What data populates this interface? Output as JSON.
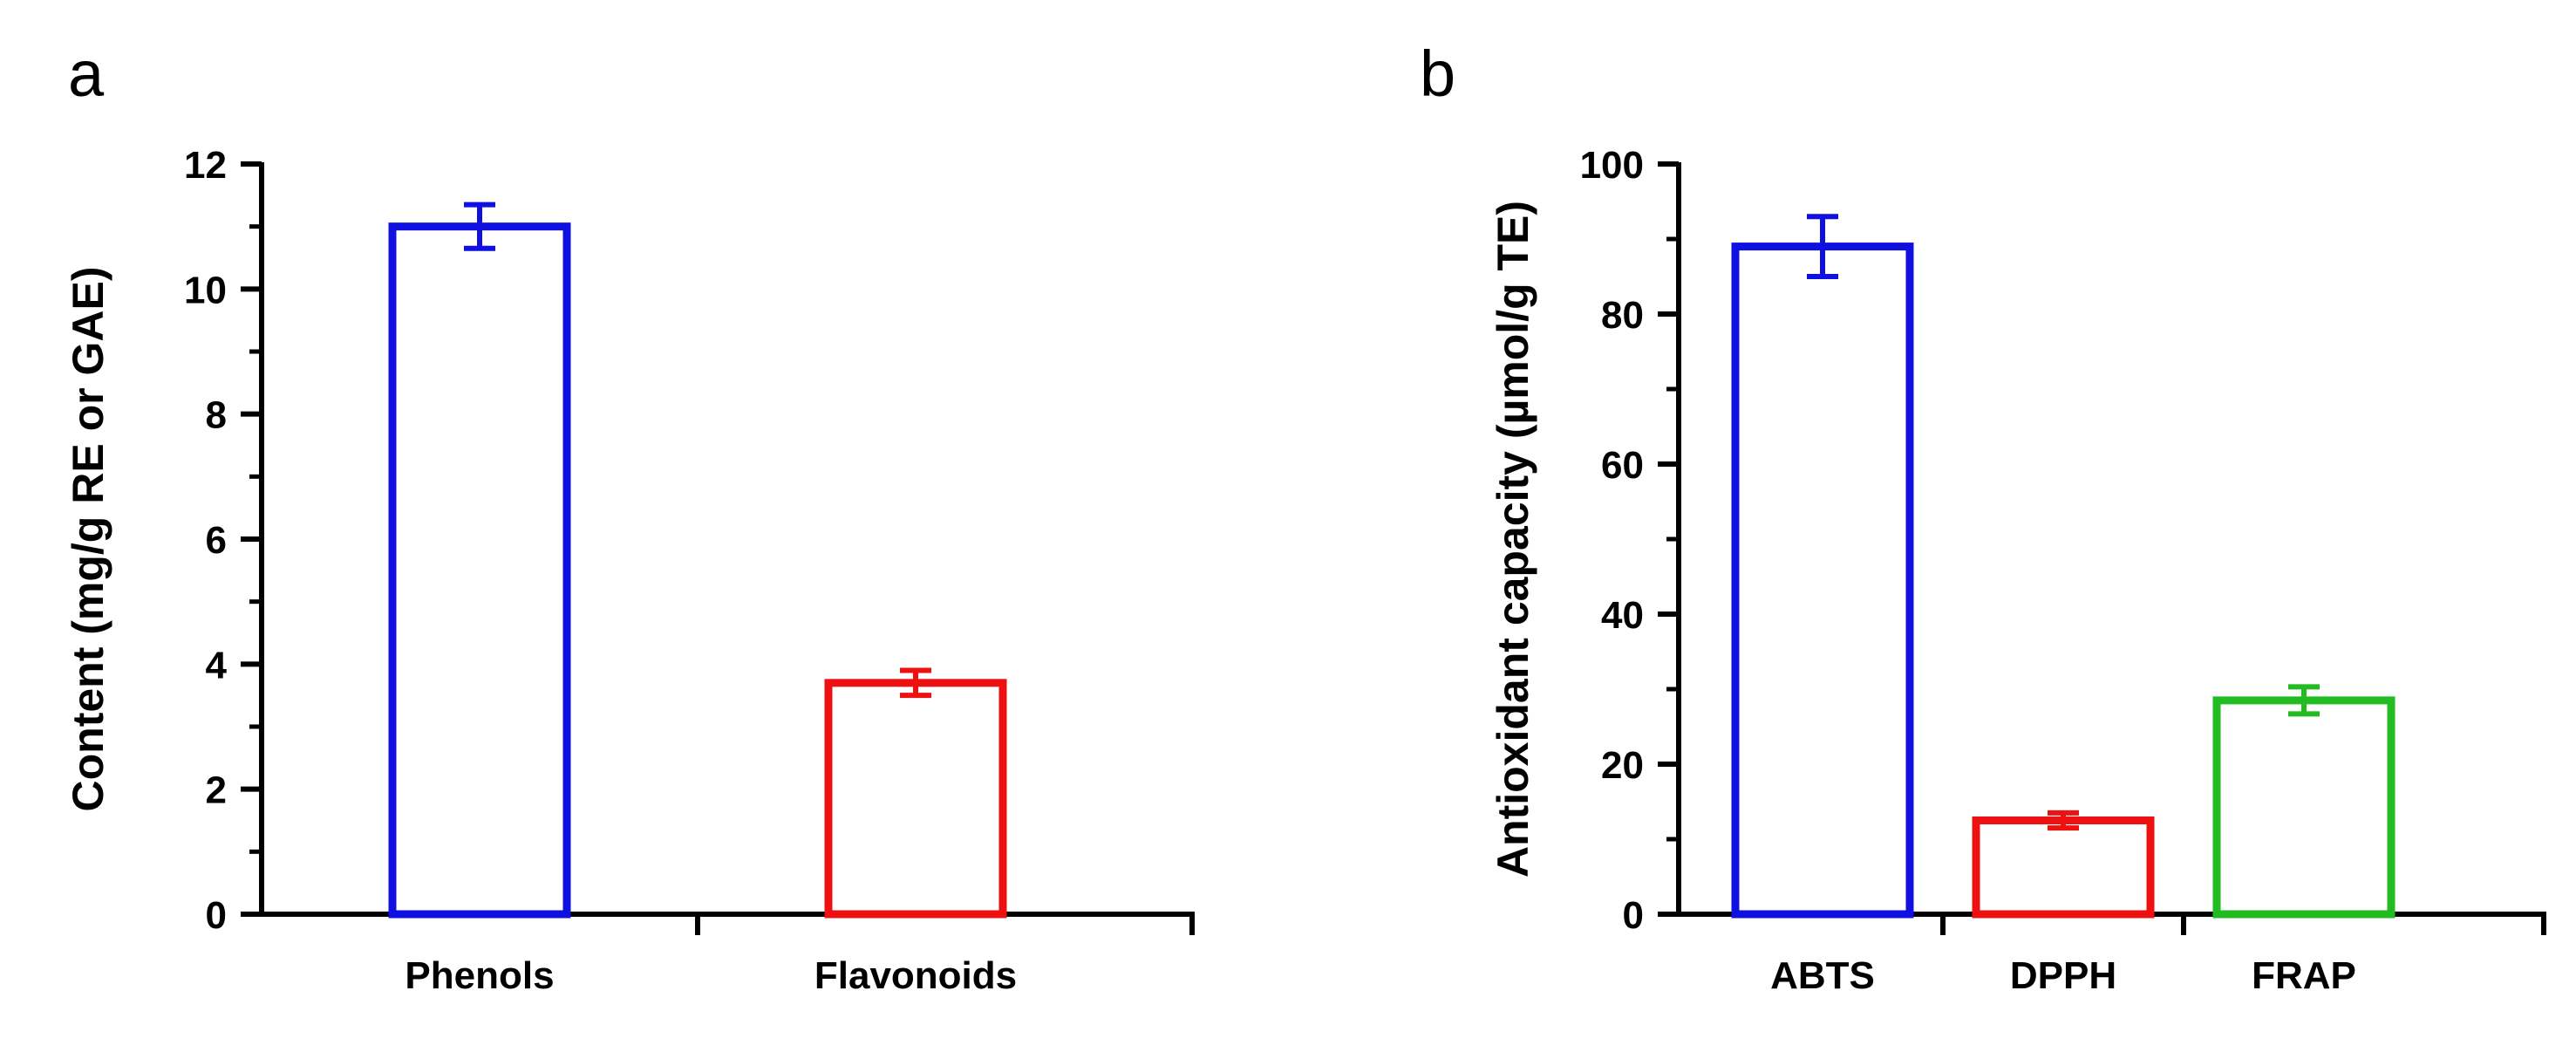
{
  "chart_data": [
    {
      "type": "bar",
      "panel": "a",
      "title": "",
      "xlabel": "",
      "ylabel": "Content (mg/g RE or GAE)",
      "categories": [
        "Phenols",
        "Flavonoids"
      ],
      "values": [
        11.0,
        3.7
      ],
      "errors": [
        0.35,
        0.2
      ],
      "colors": [
        "#1010e0",
        "#ee1111"
      ],
      "ylim": [
        0,
        12
      ],
      "yticks": [
        0,
        2,
        4,
        6,
        8,
        10,
        12
      ],
      "grid": false,
      "legend": "none"
    },
    {
      "type": "bar",
      "panel": "b",
      "title": "",
      "xlabel": "",
      "ylabel": "Antioxidant capacity (µmol/g TE)",
      "categories": [
        "ABTS",
        "DPPH",
        "FRAP"
      ],
      "values": [
        89,
        12.5,
        28.5
      ],
      "errors": [
        4,
        1,
        1.8
      ],
      "colors": [
        "#1010e0",
        "#ee1111",
        "#22bb22"
      ],
      "ylim": [
        0,
        100
      ],
      "yticks": [
        0,
        20,
        40,
        60,
        80,
        100
      ],
      "grid": false,
      "legend": "none"
    }
  ]
}
